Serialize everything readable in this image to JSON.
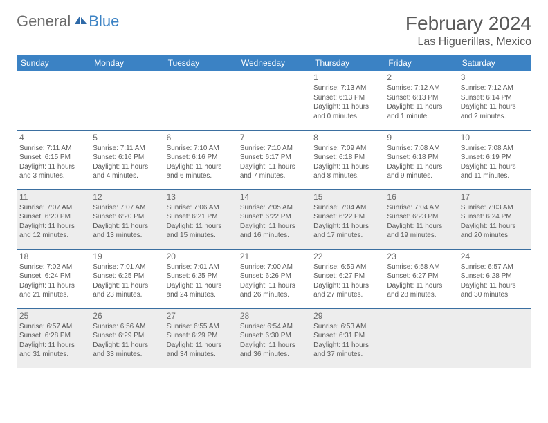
{
  "brand": {
    "word1": "General",
    "word2": "Blue"
  },
  "title": "February 2024",
  "location": "Las Higuerillas, Mexico",
  "colors": {
    "header_bg": "#3b82c4",
    "header_text": "#ffffff",
    "rule": "#3b6fa0",
    "shaded_bg": "#ededed",
    "text": "#5a5a5a"
  },
  "day_labels": [
    "Sunday",
    "Monday",
    "Tuesday",
    "Wednesday",
    "Thursday",
    "Friday",
    "Saturday"
  ],
  "weeks": [
    [
      null,
      null,
      null,
      null,
      {
        "n": "1",
        "sr": "7:13 AM",
        "ss": "6:13 PM",
        "dl": "11 hours and 0 minutes."
      },
      {
        "n": "2",
        "sr": "7:12 AM",
        "ss": "6:13 PM",
        "dl": "11 hours and 1 minute."
      },
      {
        "n": "3",
        "sr": "7:12 AM",
        "ss": "6:14 PM",
        "dl": "11 hours and 2 minutes."
      }
    ],
    [
      {
        "n": "4",
        "sr": "7:11 AM",
        "ss": "6:15 PM",
        "dl": "11 hours and 3 minutes."
      },
      {
        "n": "5",
        "sr": "7:11 AM",
        "ss": "6:16 PM",
        "dl": "11 hours and 4 minutes."
      },
      {
        "n": "6",
        "sr": "7:10 AM",
        "ss": "6:16 PM",
        "dl": "11 hours and 6 minutes."
      },
      {
        "n": "7",
        "sr": "7:10 AM",
        "ss": "6:17 PM",
        "dl": "11 hours and 7 minutes."
      },
      {
        "n": "8",
        "sr": "7:09 AM",
        "ss": "6:18 PM",
        "dl": "11 hours and 8 minutes."
      },
      {
        "n": "9",
        "sr": "7:08 AM",
        "ss": "6:18 PM",
        "dl": "11 hours and 9 minutes."
      },
      {
        "n": "10",
        "sr": "7:08 AM",
        "ss": "6:19 PM",
        "dl": "11 hours and 11 minutes."
      }
    ],
    [
      {
        "n": "11",
        "sr": "7:07 AM",
        "ss": "6:20 PM",
        "dl": "11 hours and 12 minutes."
      },
      {
        "n": "12",
        "sr": "7:07 AM",
        "ss": "6:20 PM",
        "dl": "11 hours and 13 minutes."
      },
      {
        "n": "13",
        "sr": "7:06 AM",
        "ss": "6:21 PM",
        "dl": "11 hours and 15 minutes."
      },
      {
        "n": "14",
        "sr": "7:05 AM",
        "ss": "6:22 PM",
        "dl": "11 hours and 16 minutes."
      },
      {
        "n": "15",
        "sr": "7:04 AM",
        "ss": "6:22 PM",
        "dl": "11 hours and 17 minutes."
      },
      {
        "n": "16",
        "sr": "7:04 AM",
        "ss": "6:23 PM",
        "dl": "11 hours and 19 minutes."
      },
      {
        "n": "17",
        "sr": "7:03 AM",
        "ss": "6:24 PM",
        "dl": "11 hours and 20 minutes."
      }
    ],
    [
      {
        "n": "18",
        "sr": "7:02 AM",
        "ss": "6:24 PM",
        "dl": "11 hours and 21 minutes."
      },
      {
        "n": "19",
        "sr": "7:01 AM",
        "ss": "6:25 PM",
        "dl": "11 hours and 23 minutes."
      },
      {
        "n": "20",
        "sr": "7:01 AM",
        "ss": "6:25 PM",
        "dl": "11 hours and 24 minutes."
      },
      {
        "n": "21",
        "sr": "7:00 AM",
        "ss": "6:26 PM",
        "dl": "11 hours and 26 minutes."
      },
      {
        "n": "22",
        "sr": "6:59 AM",
        "ss": "6:27 PM",
        "dl": "11 hours and 27 minutes."
      },
      {
        "n": "23",
        "sr": "6:58 AM",
        "ss": "6:27 PM",
        "dl": "11 hours and 28 minutes."
      },
      {
        "n": "24",
        "sr": "6:57 AM",
        "ss": "6:28 PM",
        "dl": "11 hours and 30 minutes."
      }
    ],
    [
      {
        "n": "25",
        "sr": "6:57 AM",
        "ss": "6:28 PM",
        "dl": "11 hours and 31 minutes."
      },
      {
        "n": "26",
        "sr": "6:56 AM",
        "ss": "6:29 PM",
        "dl": "11 hours and 33 minutes."
      },
      {
        "n": "27",
        "sr": "6:55 AM",
        "ss": "6:29 PM",
        "dl": "11 hours and 34 minutes."
      },
      {
        "n": "28",
        "sr": "6:54 AM",
        "ss": "6:30 PM",
        "dl": "11 hours and 36 minutes."
      },
      {
        "n": "29",
        "sr": "6:53 AM",
        "ss": "6:31 PM",
        "dl": "11 hours and 37 minutes."
      },
      null,
      null
    ]
  ],
  "labels": {
    "sunrise": "Sunrise: ",
    "sunset": "Sunset: ",
    "daylight": "Daylight: "
  },
  "shaded_rows": [
    2,
    4
  ]
}
